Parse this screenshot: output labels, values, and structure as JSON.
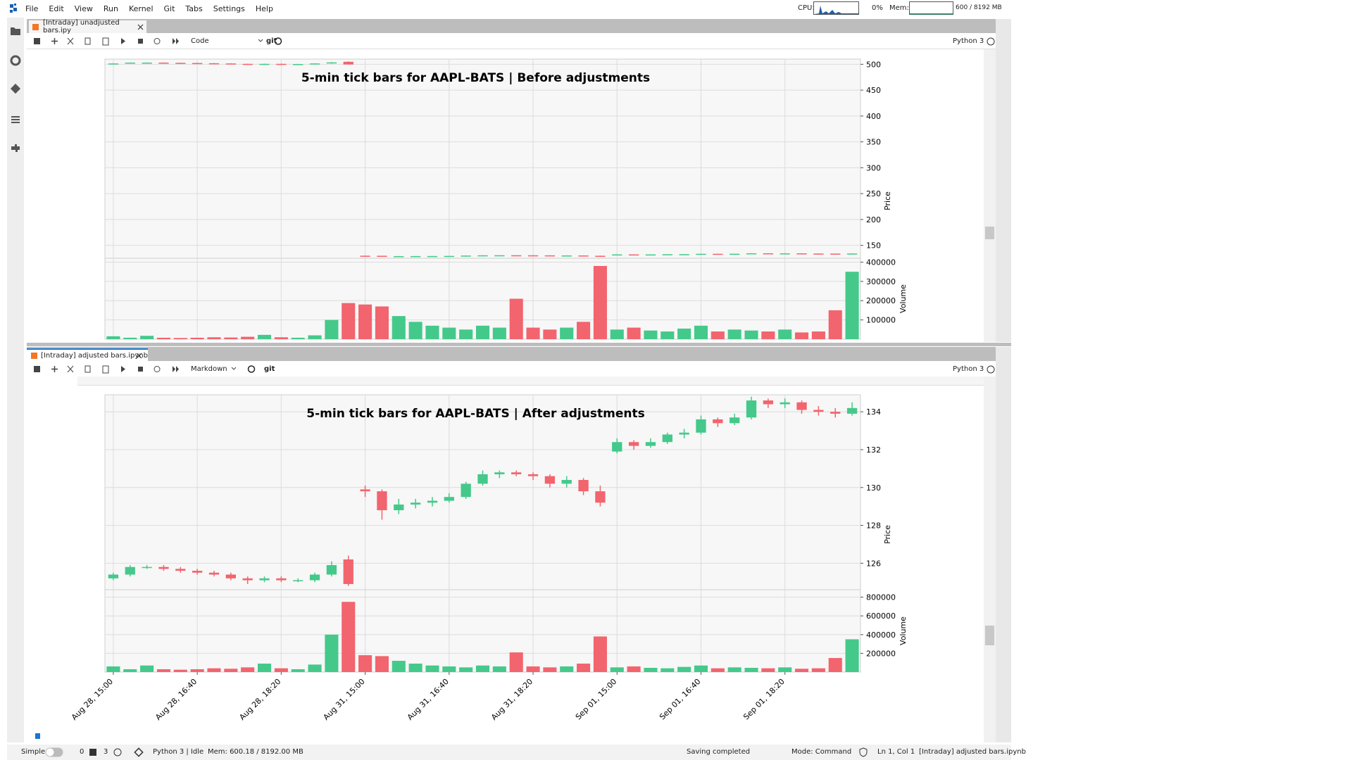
{
  "menu": [
    "File",
    "Edit",
    "View",
    "Run",
    "Kernel",
    "Git",
    "Tabs",
    "Settings",
    "Help"
  ],
  "system": {
    "cpu_label": "CPU:",
    "cpu_value": "0%",
    "mem_label": "Mem:",
    "mem_value": "600 / 8192 MB"
  },
  "panels": [
    {
      "tab": "[Intraday] unadjusted bars.ipy",
      "cell_type": "Code",
      "git": "git",
      "kernel": "Python 3"
    },
    {
      "tab": "[Intraday] adjusted bars.ipynb",
      "cell_type": "Markdown",
      "git": "git",
      "kernel": "Python 3"
    }
  ],
  "status_bar": {
    "mode_toggle": "Simple",
    "terminals": "0",
    "kernels": "3",
    "kernel_status": "Python 3 | Idle",
    "memory": "Mem: 600.18 / 8192.00 MB",
    "save_status": "Saving completed",
    "command_mode": "Mode: Command",
    "cursor": "Ln 1, Col 1",
    "document": "[Intraday] adjusted bars.ipynb"
  },
  "chart_data": [
    {
      "type": "candlestick",
      "title": "5-min tick bars for AAPL-BATS | Before adjustments",
      "y_label": "Price",
      "volume_label": "Volume",
      "up_color": "#44c98b",
      "down_color": "#f2646e",
      "ylim": [
        125,
        510
      ],
      "yticks": [
        150,
        200,
        250,
        300,
        350,
        400,
        450,
        500
      ],
      "volume_ylim": [
        0,
        420000
      ],
      "volume_yticks": [
        100000,
        200000,
        300000,
        400000
      ],
      "open": [
        500.8,
        501.6,
        503.2,
        503.2,
        502.8,
        502.4,
        502.0,
        501.6,
        500.8,
        500.4,
        500.8,
        500.4,
        500.4,
        501.6,
        504.8,
        129.9,
        129.8,
        128.8,
        129.1,
        129.2,
        129.3,
        129.5,
        130.2,
        130.7,
        130.8,
        130.7,
        130.6,
        130.2,
        130.4,
        129.8,
        131.9,
        132.4,
        132.2,
        132.4,
        132.8,
        132.9,
        133.6,
        133.4,
        133.7,
        134.6,
        134.4,
        134.5,
        134.1,
        134.0,
        133.9
      ],
      "high": [
        502.0,
        503.6,
        503.6,
        503.6,
        503.2,
        502.8,
        502.4,
        502.0,
        501.2,
        501.2,
        501.2,
        500.8,
        502.0,
        504.4,
        505.6,
        130.1,
        129.9,
        129.4,
        129.4,
        129.5,
        129.7,
        130.3,
        130.9,
        130.9,
        130.9,
        130.8,
        130.7,
        130.6,
        130.5,
        130.1,
        132.6,
        132.5,
        132.6,
        132.9,
        133.1,
        133.8,
        133.7,
        133.9,
        134.8,
        134.7,
        134.7,
        134.6,
        134.3,
        134.2,
        134.5
      ],
      "low": [
        500.4,
        501.2,
        502.8,
        502.4,
        502.0,
        501.6,
        501.2,
        500.4,
        499.6,
        500.0,
        500.0,
        500.0,
        500.0,
        501.2,
        499.2,
        129.5,
        128.3,
        128.6,
        128.9,
        129.0,
        129.2,
        129.4,
        130.1,
        130.5,
        130.6,
        130.4,
        130.0,
        130.0,
        129.6,
        129.0,
        131.8,
        132.0,
        132.1,
        132.3,
        132.6,
        132.8,
        133.2,
        133.3,
        133.6,
        134.2,
        134.2,
        133.9,
        133.8,
        133.7,
        133.8
      ],
      "close": [
        501.6,
        503.2,
        503.2,
        502.8,
        502.4,
        502.0,
        501.6,
        500.8,
        500.4,
        500.8,
        500.4,
        500.4,
        501.6,
        503.6,
        499.6,
        129.8,
        128.8,
        129.1,
        129.2,
        129.3,
        129.5,
        130.2,
        130.7,
        130.8,
        130.7,
        130.6,
        130.2,
        130.4,
        129.8,
        129.2,
        132.4,
        132.2,
        132.4,
        132.8,
        132.9,
        133.6,
        133.4,
        133.7,
        134.6,
        134.4,
        134.5,
        134.1,
        134.0,
        133.9,
        134.2
      ],
      "volume": [
        15000,
        7500,
        17500,
        7500,
        6250,
        7500,
        10000,
        8750,
        12500,
        22500,
        10000,
        7500,
        20000,
        100000,
        187500,
        180000,
        170000,
        120000,
        90000,
        70000,
        60000,
        50000,
        70000,
        60000,
        210000,
        60000,
        50000,
        60000,
        90000,
        380000,
        50000,
        60000,
        45000,
        40000,
        55000,
        70000,
        40000,
        50000,
        45000,
        40000,
        50000,
        35000,
        40000,
        150000,
        350000
      ]
    },
    {
      "type": "candlestick",
      "title": "5-min tick bars for AAPL-BATS | After adjustments",
      "y_label": "Price",
      "volume_label": "Volume",
      "up_color": "#44c98b",
      "down_color": "#f2646e",
      "ylim": [
        124.6,
        134.9
      ],
      "yticks": [
        126,
        128,
        130,
        132,
        134
      ],
      "volume_ylim": [
        0,
        880000
      ],
      "volume_yticks": [
        200000,
        400000,
        600000,
        800000
      ],
      "categories": [
        "Aug 28, 15:00",
        null,
        null,
        null,
        null,
        "Aug 28, 16:40",
        null,
        null,
        null,
        null,
        "Aug 28, 18:20",
        null,
        null,
        null,
        null,
        "Aug 31, 15:00",
        null,
        null,
        null,
        null,
        "Aug 31, 16:40",
        null,
        null,
        null,
        null,
        "Aug 31, 18:20",
        null,
        null,
        null,
        null,
        "Sep 01, 15:00",
        null,
        null,
        null,
        null,
        "Sep 01, 16:40",
        null,
        null,
        null,
        null,
        "Sep 01, 18:20",
        null,
        null,
        null,
        null
      ],
      "open": [
        125.2,
        125.4,
        125.8,
        125.8,
        125.7,
        125.6,
        125.5,
        125.4,
        125.2,
        125.1,
        125.2,
        125.1,
        125.1,
        125.4,
        126.2,
        129.9,
        129.8,
        128.8,
        129.1,
        129.2,
        129.3,
        129.5,
        130.2,
        130.7,
        130.8,
        130.7,
        130.6,
        130.2,
        130.4,
        129.8,
        131.9,
        132.4,
        132.2,
        132.4,
        132.8,
        132.9,
        133.6,
        133.4,
        133.7,
        134.6,
        134.4,
        134.5,
        134.1,
        134.0,
        133.9
      ],
      "high": [
        125.5,
        125.9,
        125.9,
        125.9,
        125.8,
        125.7,
        125.6,
        125.5,
        125.3,
        125.3,
        125.3,
        125.2,
        125.5,
        126.1,
        126.4,
        130.1,
        129.9,
        129.4,
        129.4,
        129.5,
        129.7,
        130.3,
        130.9,
        130.9,
        130.9,
        130.8,
        130.7,
        130.6,
        130.5,
        130.1,
        132.6,
        132.5,
        132.6,
        132.9,
        133.1,
        133.8,
        133.7,
        133.9,
        134.8,
        134.7,
        134.7,
        134.6,
        134.3,
        134.2,
        134.5
      ],
      "low": [
        125.1,
        125.3,
        125.7,
        125.6,
        125.5,
        125.4,
        125.3,
        125.1,
        124.9,
        125.0,
        125.0,
        125.0,
        125.0,
        125.3,
        124.8,
        129.5,
        128.3,
        128.6,
        128.9,
        129.0,
        129.2,
        129.4,
        130.1,
        130.5,
        130.6,
        130.4,
        130.0,
        130.0,
        129.6,
        129.0,
        131.8,
        132.0,
        132.1,
        132.3,
        132.6,
        132.8,
        133.2,
        133.3,
        133.6,
        134.2,
        134.2,
        133.9,
        133.8,
        133.7,
        133.8
      ],
      "close": [
        125.4,
        125.8,
        125.8,
        125.7,
        125.6,
        125.5,
        125.4,
        125.2,
        125.1,
        125.2,
        125.1,
        125.1,
        125.4,
        125.9,
        124.9,
        129.8,
        128.8,
        129.1,
        129.2,
        129.3,
        129.5,
        130.2,
        130.7,
        130.8,
        130.7,
        130.6,
        130.2,
        130.4,
        129.8,
        129.2,
        132.4,
        132.2,
        132.4,
        132.8,
        132.9,
        133.6,
        133.4,
        133.7,
        134.6,
        134.4,
        134.5,
        134.1,
        134.0,
        133.9,
        134.2
      ],
      "volume": [
        60000,
        30000,
        70000,
        30000,
        25000,
        30000,
        40000,
        35000,
        50000,
        90000,
        40000,
        30000,
        80000,
        400000,
        750000,
        180000,
        170000,
        120000,
        90000,
        70000,
        60000,
        50000,
        70000,
        60000,
        210000,
        60000,
        50000,
        60000,
        90000,
        380000,
        50000,
        60000,
        45000,
        40000,
        55000,
        70000,
        40000,
        50000,
        45000,
        40000,
        50000,
        35000,
        40000,
        150000,
        350000
      ]
    }
  ]
}
